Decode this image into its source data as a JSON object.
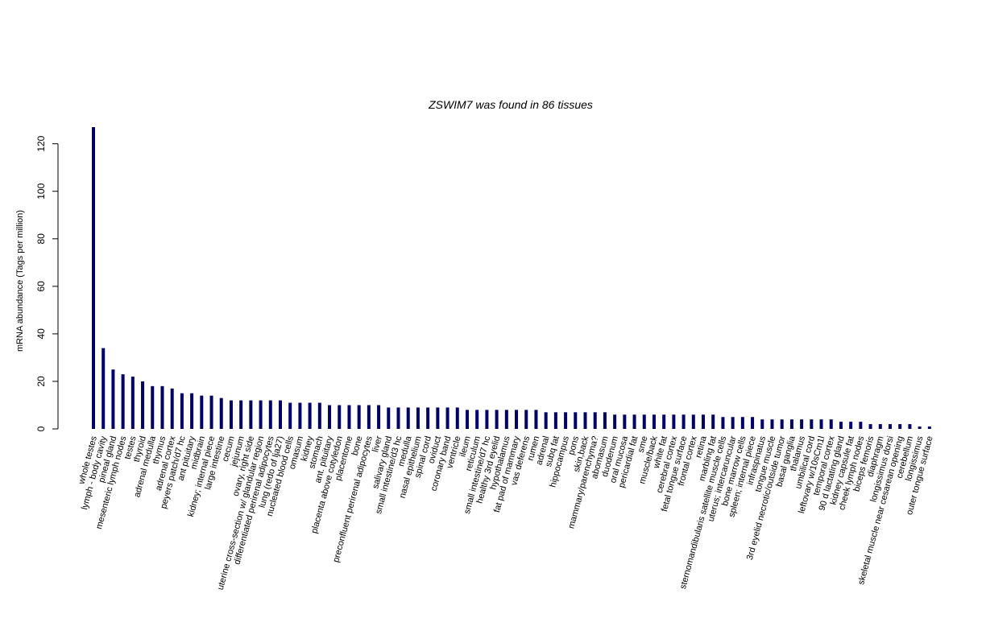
{
  "chart_data": {
    "type": "bar",
    "title": "ZSWIM7  was found in  86  tissues",
    "xlabel": "",
    "ylabel": "mRNA abundance (Tags per million)",
    "ylim": [
      0,
      127
    ],
    "yticks": [
      0,
      20,
      40,
      60,
      80,
      100,
      120
    ],
    "grid": false,
    "color": "#000066",
    "categories": [
      "whole testes",
      "lymph - body cavity",
      "pineal gland",
      "mesenteric lymph nodes",
      "testes",
      "thyroid",
      "adrenal medulla",
      "thymus",
      "adrenal cortex",
      "peyers patch/d7 hc",
      "ant pituitary",
      "midbrain",
      "kidney; internal piece",
      "large intestine",
      "cecum",
      "jejunum",
      "ovary, right side",
      "uterine cross-section w/ glandular region",
      "differentiated perirenal adipocytes",
      "lung (redo of lja27)",
      "nucleated blood cells",
      "omasum",
      "kidney",
      "stomach",
      "ant. pituitary",
      "placenta above cotyledon",
      "placentome",
      "bone",
      "preconfluent perirenal adipocytes",
      "liver",
      "salivary gland",
      "small intestine/d3 hc",
      "medulla",
      "nasal epithelium",
      "spinal cord",
      "oviduct",
      "coronary band",
      "ventricle",
      "ileum",
      "reticulum",
      "small intestine/d7 hc",
      "healthy 3rd eyelid",
      "hypothalamus",
      "fat pad of mammary",
      "vas deferens",
      "rumen",
      "adrenal",
      "subq fat",
      "hippocampus",
      "pons",
      "skin,back",
      "mammary/parenchyma?",
      "abomasum",
      "duodenum",
      "oral mucosa",
      "pericardial fat",
      "sme",
      "muscle/back",
      "white fat",
      "cerebral cortex",
      "fetal tongue surface",
      "frontal cortex",
      "retina",
      "marbling fat",
      "sternomandibularis satellite muscle cells",
      "uterus; intercaruncular",
      "bone marrow cells",
      "spleen; internal piece",
      "infraspinatus",
      "tongue muscle",
      "3rd eyelid necrotic/outside tumor",
      "basal ganglia",
      "thalamus",
      "umbilical cord",
      "leftovary w/10sCm1l",
      "temporal cortex",
      "90 d lactating gland",
      "kidney capsule fat",
      "cheek lymph nodes",
      "biceps femoris",
      "diaphragm",
      "longissimus dorsi",
      "skeletal muscle near cesarean opening",
      "cerebellum",
      "longissimus",
      "outer tongue surface"
    ],
    "values": [
      127,
      34,
      25,
      23,
      22,
      20,
      18,
      18,
      17,
      15,
      15,
      14,
      14,
      13,
      12,
      12,
      12,
      12,
      12,
      12,
      11,
      11,
      11,
      11,
      10,
      10,
      10,
      10,
      10,
      10,
      9,
      9,
      9,
      9,
      9,
      9,
      9,
      9,
      8,
      8,
      8,
      8,
      8,
      8,
      8,
      8,
      7,
      7,
      7,
      7,
      7,
      7,
      7,
      6,
      6,
      6,
      6,
      6,
      6,
      6,
      6,
      6,
      6,
      6,
      5,
      5,
      5,
      5,
      4,
      4,
      4,
      4,
      4,
      4,
      4,
      4,
      3,
      3,
      3,
      2,
      2,
      2,
      2,
      2,
      1,
      1
    ]
  }
}
